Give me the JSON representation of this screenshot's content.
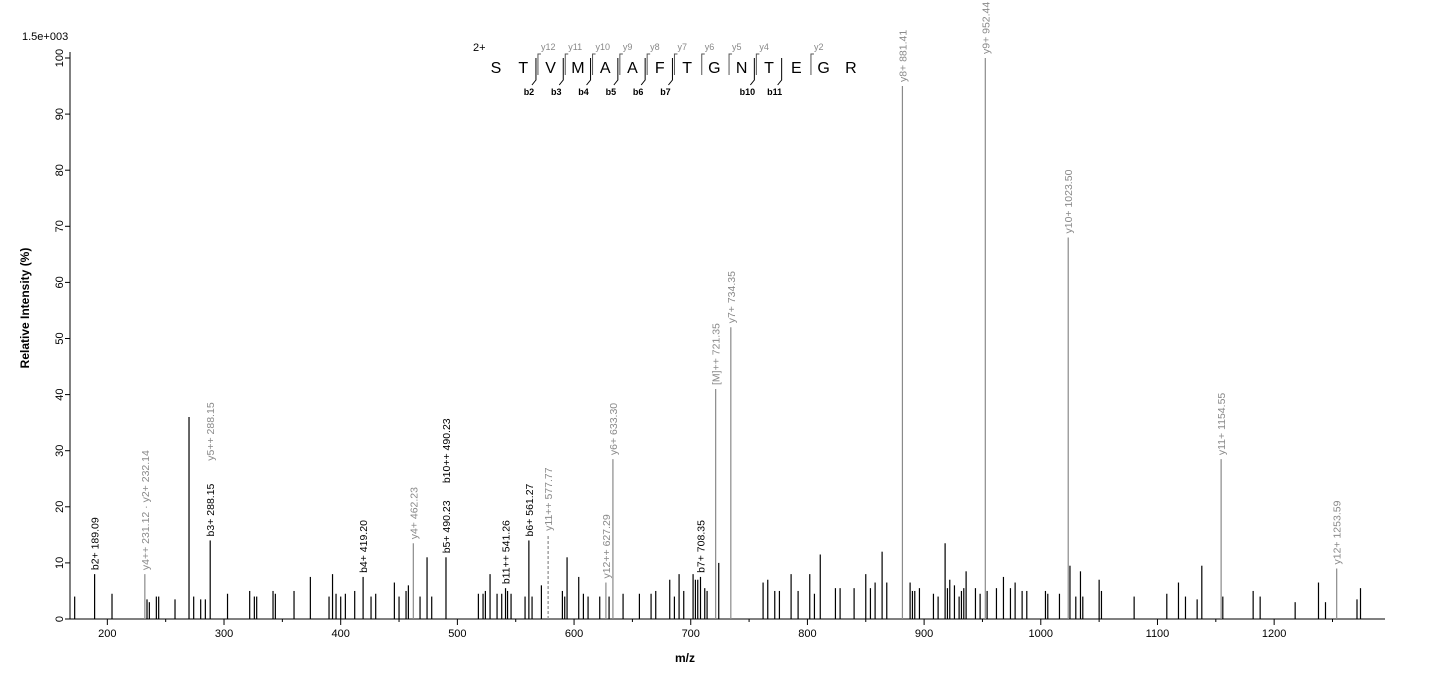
{
  "chart_data": {
    "type": "bar",
    "scale_label": "1.5e+003",
    "xlabel": "m/z",
    "ylabel": "Relative   Intensity (%)",
    "xlim": [
      168,
      1295
    ],
    "ylim": [
      0,
      100
    ],
    "x_ticks": [
      200,
      300,
      400,
      500,
      600,
      700,
      800,
      900,
      1000,
      1100,
      1200
    ],
    "y_ticks": [
      0,
      10,
      20,
      30,
      40,
      50,
      60,
      70,
      80,
      90,
      100
    ],
    "grid": false,
    "charge_label": "2+",
    "sequence": [
      "S",
      "T",
      "V",
      "M",
      "A",
      "A",
      "F",
      "T",
      "G",
      "N",
      "T",
      "E",
      "G",
      "R"
    ],
    "y_ions": [
      {
        "gap": 2,
        "label": "y12"
      },
      {
        "gap": 3,
        "label": "y11"
      },
      {
        "gap": 4,
        "label": "y10"
      },
      {
        "gap": 5,
        "label": "y9"
      },
      {
        "gap": 6,
        "label": "y8"
      },
      {
        "gap": 7,
        "label": "y7"
      },
      {
        "gap": 8,
        "label": "y6"
      },
      {
        "gap": 9,
        "label": "y5"
      },
      {
        "gap": 10,
        "label": "y4"
      },
      {
        "gap": 12,
        "label": "y2"
      }
    ],
    "b_ions": [
      {
        "gap": 2,
        "label": "b2"
      },
      {
        "gap": 3,
        "label": "b3"
      },
      {
        "gap": 4,
        "label": "b4"
      },
      {
        "gap": 5,
        "label": "b5"
      },
      {
        "gap": 6,
        "label": "b6"
      },
      {
        "gap": 7,
        "label": "b7"
      },
      {
        "gap": 10,
        "label": "b10"
      },
      {
        "gap": 11,
        "label": "b11"
      }
    ],
    "annotated_peaks": [
      {
        "mz": 189.09,
        "y": 8.0,
        "label": "b2+ 189.09",
        "kind": "b"
      },
      {
        "mz": 232.14,
        "y": 8.0,
        "label": "y4++ 231.12 · y2+ 232.14",
        "kind": "y"
      },
      {
        "mz": 288.15,
        "y": 14.0,
        "label": "b3+ 288.15",
        "kind": "b"
      },
      {
        "mz": 288.15,
        "y": 27.5,
        "label": "y5++ 288.15",
        "kind": "y",
        "label_only": true
      },
      {
        "mz": 419.2,
        "y": 7.5,
        "label": "b4+ 419.20",
        "kind": "b"
      },
      {
        "mz": 462.23,
        "y": 13.5,
        "label": "y4+ 462.23",
        "kind": "y"
      },
      {
        "mz": 490.23,
        "y": 11.0,
        "label": "b5+ 490.23",
        "kind": "b"
      },
      {
        "mz": 490.23,
        "y": 23.5,
        "label": "b10++ 490.23",
        "kind": "b",
        "label_only": true
      },
      {
        "mz": 541.26,
        "y": 5.5,
        "label": "b11++ 541.26",
        "kind": "b"
      },
      {
        "mz": 561.27,
        "y": 14.0,
        "label": "b6+ 561.27",
        "kind": "b"
      },
      {
        "mz": 577.77,
        "y": 15.0,
        "label": "y11++ 577.77",
        "kind": "y",
        "dashed": true
      },
      {
        "mz": 627.29,
        "y": 6.5,
        "label": "y12++ 627.29",
        "kind": "y"
      },
      {
        "mz": 633.3,
        "y": 28.5,
        "label": "y6+ 633.30",
        "kind": "y"
      },
      {
        "mz": 708.35,
        "y": 7.5,
        "label": "b7+ 708.35",
        "kind": "b"
      },
      {
        "mz": 721.35,
        "y": 41.0,
        "label": "[M]++ 721.35",
        "kind": "y"
      },
      {
        "mz": 734.35,
        "y": 52.0,
        "label": "y7+ 734.35",
        "kind": "y"
      },
      {
        "mz": 881.41,
        "y": 95.0,
        "label": "y8+ 881.41",
        "kind": "y"
      },
      {
        "mz": 952.44,
        "y": 100.0,
        "label": "y9+ 952.44",
        "kind": "y"
      },
      {
        "mz": 1023.5,
        "y": 68.0,
        "label": "y10+ 1023.50",
        "kind": "y"
      },
      {
        "mz": 1154.55,
        "y": 28.5,
        "label": "y11+ 1154.55",
        "kind": "y"
      },
      {
        "mz": 1253.59,
        "y": 9.0,
        "label": "y12+ 1253.59",
        "kind": "y"
      }
    ],
    "other_peaks": [
      [
        172,
        4
      ],
      [
        204,
        4.5
      ],
      [
        234,
        3.5
      ],
      [
        236,
        3
      ],
      [
        242,
        4
      ],
      [
        244,
        4
      ],
      [
        258,
        3.5
      ],
      [
        270,
        36
      ],
      [
        274,
        4
      ],
      [
        280,
        3.5
      ],
      [
        284,
        3.5
      ],
      [
        303,
        4.5
      ],
      [
        322,
        5
      ],
      [
        326,
        4
      ],
      [
        328,
        4
      ],
      [
        342,
        5
      ],
      [
        344,
        4.5
      ],
      [
        360,
        5
      ],
      [
        374,
        7.5
      ],
      [
        390,
        4
      ],
      [
        393,
        8
      ],
      [
        396,
        4.5
      ],
      [
        400,
        4
      ],
      [
        404,
        4.5
      ],
      [
        412,
        5
      ],
      [
        426,
        4
      ],
      [
        430,
        4.5
      ],
      [
        446,
        6.5
      ],
      [
        450,
        4
      ],
      [
        456,
        5
      ],
      [
        458,
        6
      ],
      [
        468,
        4
      ],
      [
        474,
        11
      ],
      [
        478,
        4
      ],
      [
        518,
        4.5
      ],
      [
        522,
        4.5
      ],
      [
        524,
        5
      ],
      [
        528,
        8
      ],
      [
        534,
        4.5
      ],
      [
        538,
        4.5
      ],
      [
        543,
        5
      ],
      [
        546,
        4.5
      ],
      [
        558,
        4
      ],
      [
        564,
        4
      ],
      [
        572,
        6
      ],
      [
        590,
        5
      ],
      [
        592,
        4
      ],
      [
        594,
        11
      ],
      [
        604,
        7.5
      ],
      [
        608,
        4.5
      ],
      [
        612,
        4
      ],
      [
        622,
        4
      ],
      [
        630,
        4
      ],
      [
        642,
        4.5
      ],
      [
        656,
        4.5
      ],
      [
        666,
        4.5
      ],
      [
        670,
        5
      ],
      [
        682,
        7
      ],
      [
        686,
        4
      ],
      [
        690,
        8
      ],
      [
        694,
        5
      ],
      [
        702,
        8
      ],
      [
        704,
        7
      ],
      [
        706,
        7
      ],
      [
        712,
        5.5
      ],
      [
        714,
        5
      ],
      [
        724,
        10
      ],
      [
        762,
        6.5
      ],
      [
        766,
        7
      ],
      [
        772,
        5
      ],
      [
        776,
        5
      ],
      [
        786,
        8
      ],
      [
        792,
        5
      ],
      [
        802,
        8
      ],
      [
        806,
        4.5
      ],
      [
        811,
        11.5
      ],
      [
        824,
        5.5
      ],
      [
        828,
        5.5
      ],
      [
        840,
        5.5
      ],
      [
        850,
        8
      ],
      [
        854,
        5.5
      ],
      [
        858,
        6.5
      ],
      [
        864,
        12
      ],
      [
        868,
        6.5
      ],
      [
        888,
        6.5
      ],
      [
        890,
        5
      ],
      [
        892,
        5
      ],
      [
        896,
        5.5
      ],
      [
        908,
        4.5
      ],
      [
        912,
        4
      ],
      [
        918,
        13.5
      ],
      [
        920,
        5.5
      ],
      [
        922,
        7
      ],
      [
        926,
        6
      ],
      [
        930,
        4
      ],
      [
        932,
        5
      ],
      [
        934,
        5.5
      ],
      [
        936,
        8.5
      ],
      [
        944,
        5.5
      ],
      [
        948,
        4.5
      ],
      [
        954,
        5
      ],
      [
        962,
        5.5
      ],
      [
        968,
        7.5
      ],
      [
        974,
        5.5
      ],
      [
        978,
        6.5
      ],
      [
        984,
        5
      ],
      [
        988,
        5
      ],
      [
        1004,
        5
      ],
      [
        1006,
        4.5
      ],
      [
        1016,
        4.5
      ],
      [
        1025,
        9.5
      ],
      [
        1030,
        4
      ],
      [
        1034,
        8.5
      ],
      [
        1036,
        4
      ],
      [
        1050,
        7
      ],
      [
        1052,
        5
      ],
      [
        1080,
        4
      ],
      [
        1108,
        4.5
      ],
      [
        1118,
        6.5
      ],
      [
        1124,
        4
      ],
      [
        1134,
        3.5
      ],
      [
        1138,
        9.5
      ],
      [
        1156,
        4
      ],
      [
        1182,
        5
      ],
      [
        1188,
        4
      ],
      [
        1218,
        3
      ],
      [
        1238,
        6.5
      ],
      [
        1244,
        3
      ],
      [
        1271,
        3.5
      ],
      [
        1274,
        5.5
      ]
    ]
  }
}
